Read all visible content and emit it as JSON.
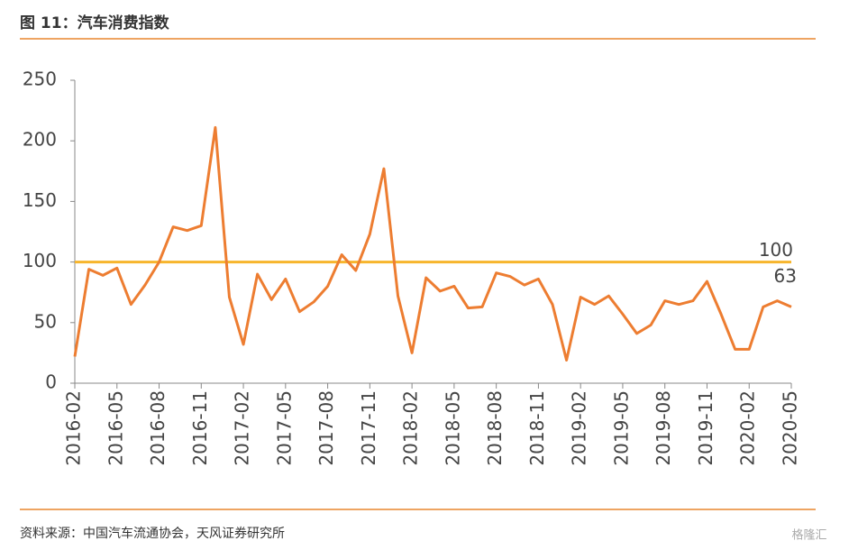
{
  "header": {
    "title": "图 11：汽车消费指数"
  },
  "chart_data": {
    "type": "line",
    "x": [
      "2016-02",
      null,
      null,
      "2016-05",
      null,
      null,
      "2016-08",
      null,
      null,
      "2016-11",
      null,
      null,
      "2017-02",
      null,
      null,
      "2017-05",
      null,
      null,
      "2017-08",
      null,
      null,
      "2017-11",
      null,
      null,
      "2018-02",
      null,
      null,
      "2018-05",
      null,
      null,
      "2018-08",
      null,
      null,
      "2018-11",
      null,
      null,
      "2019-02",
      null,
      null,
      "2019-05",
      null,
      null,
      "2019-08",
      null,
      null,
      "2019-11",
      null,
      null,
      "2020-02",
      null,
      null,
      "2020-05"
    ],
    "series": [
      {
        "color": "#ed7d31",
        "values": [
          22,
          94,
          89,
          95,
          65,
          81,
          100,
          129,
          126,
          130,
          211,
          71,
          32,
          90,
          69,
          86,
          59,
          67,
          80,
          106,
          93,
          123,
          177,
          72,
          25,
          87,
          76,
          80,
          62,
          63,
          91,
          88,
          81,
          86,
          65,
          19,
          71,
          65,
          72,
          57,
          41,
          48,
          68,
          65,
          68,
          84,
          57,
          28,
          28,
          63,
          68,
          63
        ]
      }
    ],
    "reference_line": {
      "value": 100,
      "color": "#f7b52c"
    },
    "ylim": [
      0,
      250
    ],
    "yticks": [
      0,
      50,
      100,
      150,
      200,
      250
    ]
  },
  "footer": {
    "source": "资料来源：中国汽车流通协会，天风证券研究所",
    "watermark": "格隆汇"
  }
}
